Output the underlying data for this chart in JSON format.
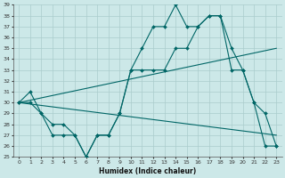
{
  "xlabel": "Humidex (Indice chaleur)",
  "bg_color": "#cce8e8",
  "line_color": "#006666",
  "grid_color": "#aacccc",
  "ylim": [
    25,
    39
  ],
  "xlim": [
    -0.5,
    23.5
  ],
  "yticks": [
    25,
    26,
    27,
    28,
    29,
    30,
    31,
    32,
    33,
    34,
    35,
    36,
    37,
    38,
    39
  ],
  "xticks": [
    0,
    1,
    2,
    3,
    4,
    5,
    6,
    7,
    8,
    9,
    10,
    11,
    12,
    13,
    14,
    15,
    16,
    17,
    18,
    19,
    20,
    21,
    22,
    23
  ],
  "series_upper": [
    30,
    31,
    29,
    28,
    28,
    27,
    25,
    27,
    27,
    29,
    33,
    35,
    37,
    37,
    39,
    37,
    37,
    38,
    38,
    35,
    33,
    30,
    29,
    26
  ],
  "series_lower": [
    30,
    30,
    29,
    27,
    27,
    27,
    25,
    27,
    27,
    29,
    33,
    33,
    33,
    33,
    35,
    35,
    37,
    38,
    38,
    33,
    33,
    30,
    26,
    26
  ],
  "line1_x": [
    0,
    23
  ],
  "line1_y": [
    30.0,
    35.0
  ],
  "line2_x": [
    0,
    23
  ],
  "line2_y": [
    30.0,
    27.0
  ]
}
